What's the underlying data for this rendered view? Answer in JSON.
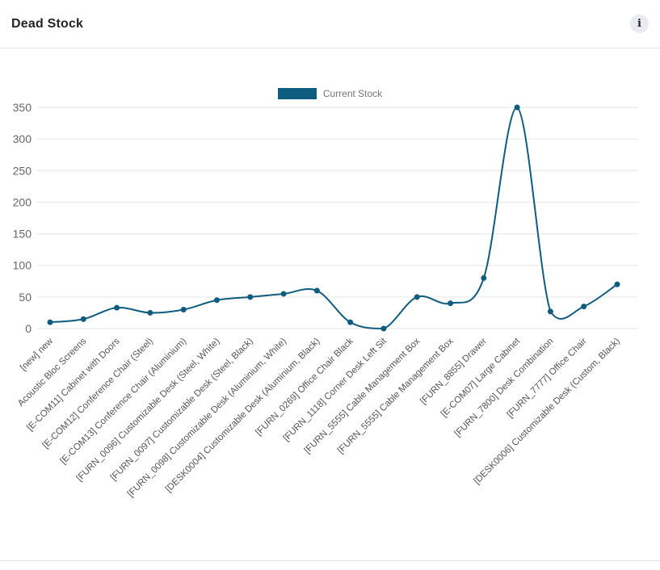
{
  "header": {
    "title": "Dead Stock",
    "info_icon_label": "i"
  },
  "chart_data": {
    "type": "line",
    "title": "Dead Stock",
    "legend": [
      "Current Stock"
    ],
    "legend_position": "top",
    "grid": true,
    "ylim": [
      0,
      350
    ],
    "yticks": [
      0,
      50,
      100,
      150,
      200,
      250,
      300,
      350
    ],
    "categories": [
      "[new] new",
      "Acoustic Bloc Screens",
      "[E-COM11] Cabinet with Doors",
      "[E-COM12] Conference Chair (Steel)",
      "[E-COM13] Conference Chair (Aluminium)",
      "[FURN_0096] Customizable Desk (Steel, White)",
      "[FURN_0097] Customizable Desk (Steel, Black)",
      "[FURN_0098] Customizable Desk (Aluminium, White)",
      "[DESK0004] Customizable Desk (Aluminium, Black)",
      "[FURN_0269] Office Chair Black",
      "[FURN_1118] Corner Desk Left Sit",
      "[FURN_5555] Cable Management Box",
      "[FURN_5555] Cable Management Box",
      "[FURN_8855] Drawer",
      "[E-COM07] Large Cabinet",
      "[FURN_7800] Desk Combination",
      "[FURN_7777] Office Chair",
      "[DESK0006] Customizable Desk (Custom, Black)"
    ],
    "series": [
      {
        "name": "Current Stock",
        "values": [
          10,
          15,
          33,
          25,
          30,
          45,
          50,
          55,
          60,
          10,
          0,
          50,
          40,
          80,
          350,
          27,
          35,
          70
        ]
      }
    ],
    "colors": {
      "line": "#0e5c80",
      "grid": "#e6e6e6",
      "axis_text": "#666666",
      "x_label_text": "#555555",
      "legend_text": "#757575"
    }
  }
}
